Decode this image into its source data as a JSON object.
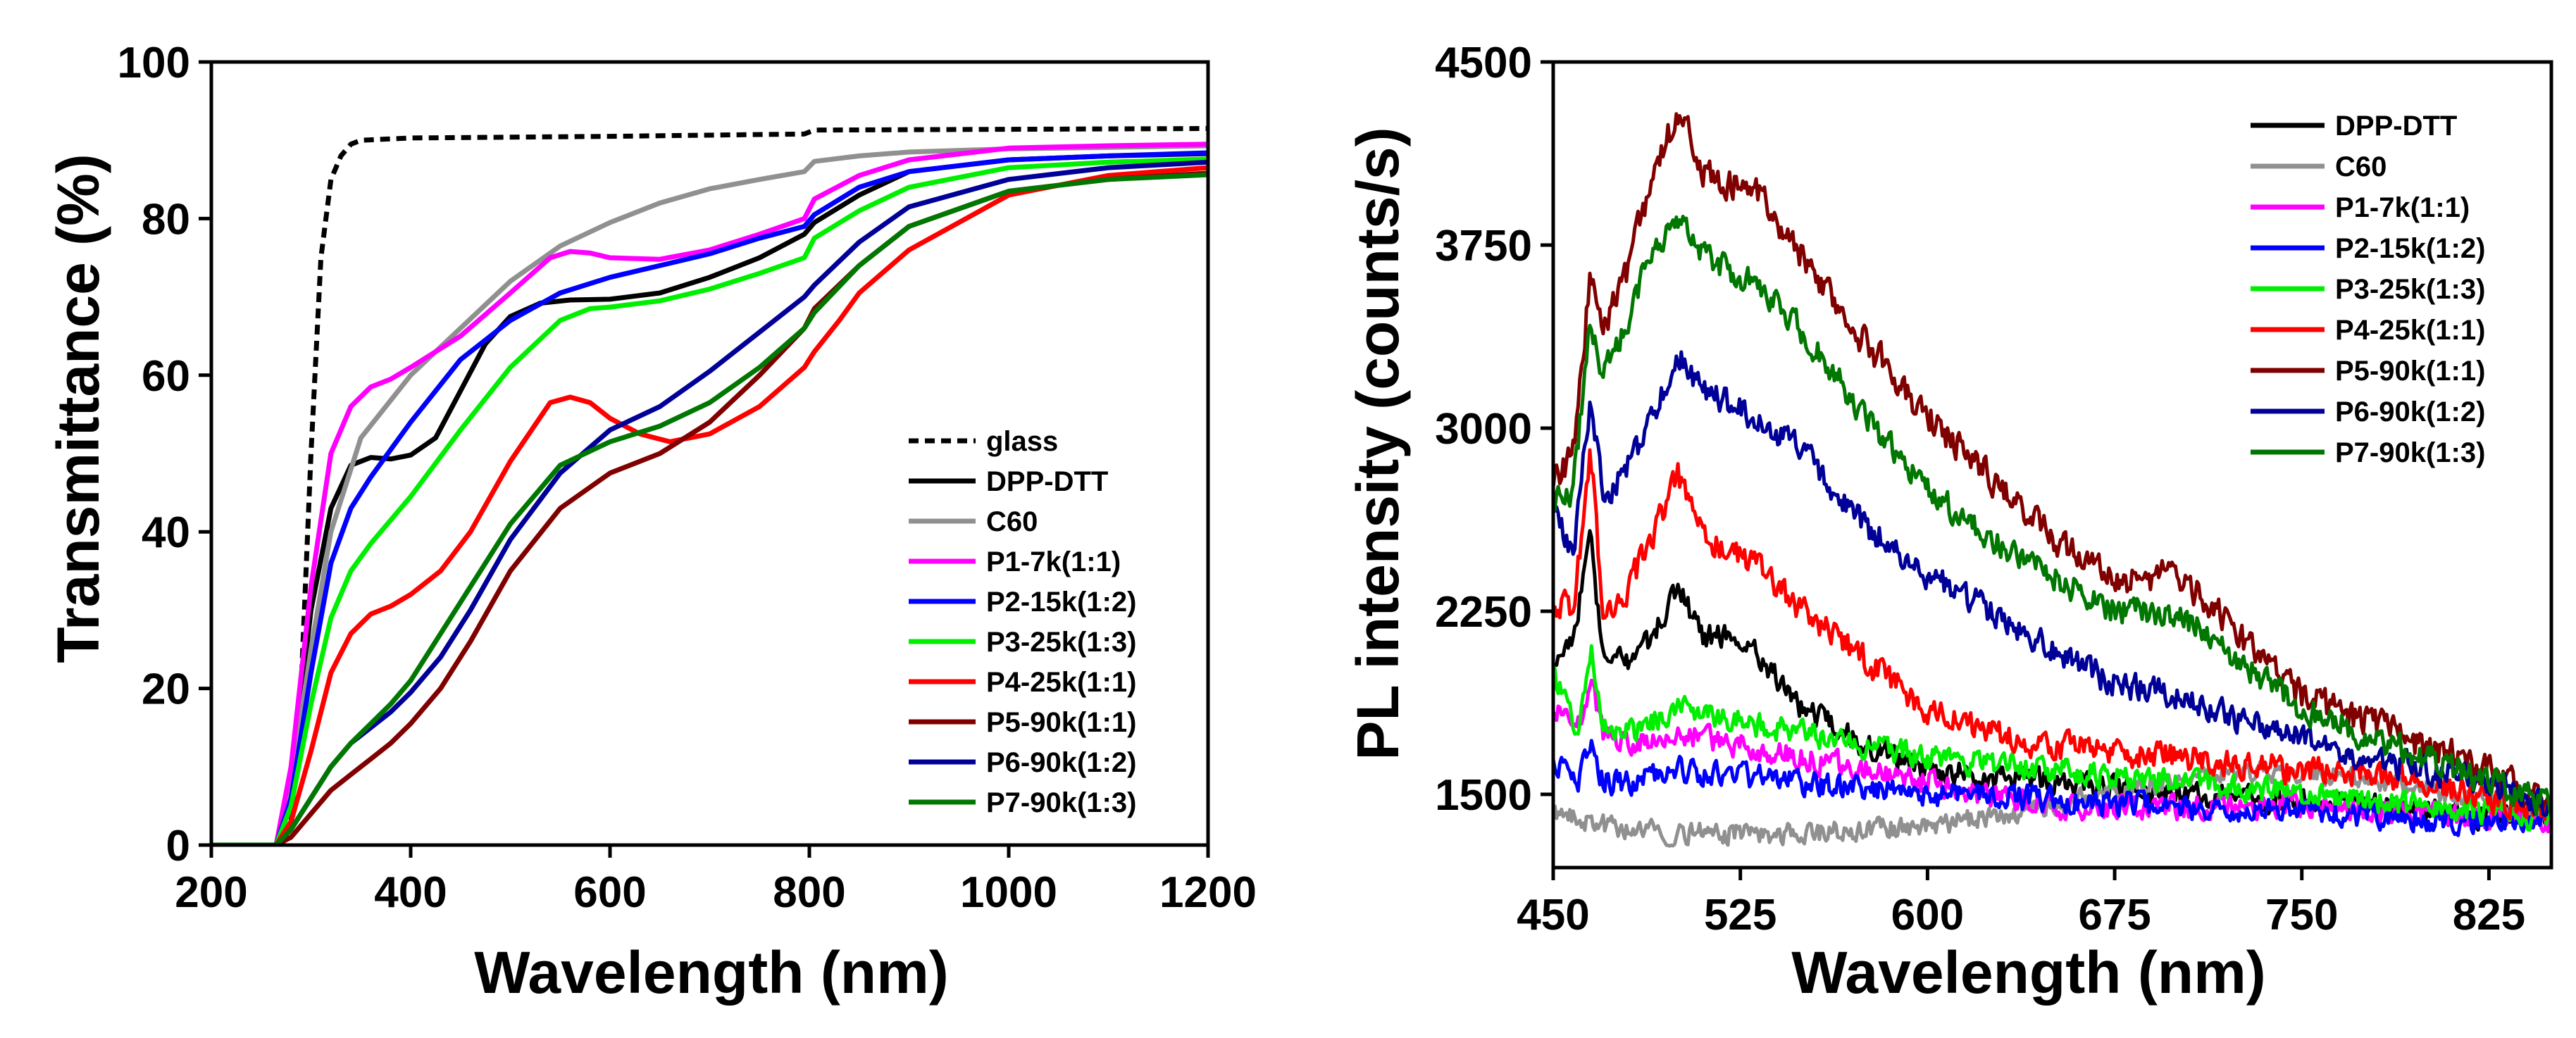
{
  "chart_data": [
    {
      "type": "line",
      "xlabel": "Wavelength  (nm)",
      "ylabel": "Transmittance  (%)",
      "xlim": [
        200,
        1200
      ],
      "ylim": [
        0,
        100
      ],
      "x_ticks": [
        200,
        400,
        600,
        800,
        1000,
        1200
      ],
      "x_tick_labels": [
        "200",
        "400",
        "600",
        "800",
        "1000",
        "1200"
      ],
      "y_ticks": [
        0,
        20,
        40,
        60,
        80,
        100
      ],
      "y_tick_labels": [
        "0",
        "20",
        "40",
        "60",
        "80",
        "100"
      ],
      "legend_position": "bottom-right",
      "series": [
        {
          "name": "glass",
          "color": "#000000",
          "dashed": true,
          "x": [
            200,
            270,
            280,
            290,
            300,
            310,
            320,
            330,
            340,
            350,
            400,
            600,
            795,
            805,
            1000,
            1200
          ],
          "y": [
            0,
            0,
            3,
            20,
            50,
            75,
            85,
            88,
            89.5,
            90,
            90.3,
            90.5,
            90.8,
            91.3,
            91.4,
            91.5
          ]
        },
        {
          "name": "DPP-DTT",
          "color": "#000000",
          "x": [
            200,
            265,
            280,
            300,
            320,
            340,
            360,
            380,
            400,
            425,
            450,
            475,
            500,
            530,
            560,
            600,
            650,
            700,
            750,
            795,
            805,
            850,
            900,
            1000,
            1100,
            1200
          ],
          "y": [
            0,
            0,
            8,
            30,
            43,
            48.5,
            49.5,
            49.3,
            49.8,
            52,
            58,
            64,
            67.5,
            69.2,
            69.6,
            69.7,
            70.5,
            72.5,
            75,
            78,
            79.5,
            83,
            86,
            87.5,
            88,
            88.3
          ]
        },
        {
          "name": "C60",
          "color": "#909090",
          "x": [
            200,
            265,
            280,
            300,
            320,
            350,
            400,
            450,
            500,
            550,
            600,
            650,
            700,
            750,
            795,
            805,
            850,
            900,
            1000,
            1100,
            1200
          ],
          "y": [
            0,
            0,
            8,
            25,
            40,
            52,
            60,
            66,
            72,
            76.5,
            79.5,
            82,
            83.8,
            85,
            86,
            87.3,
            88,
            88.5,
            88.9,
            89.1,
            89.3
          ]
        },
        {
          "name": "P1-7k(1:1)",
          "color": "#ff00ff",
          "x": [
            200,
            265,
            280,
            300,
            320,
            340,
            360,
            380,
            400,
            450,
            500,
            540,
            560,
            580,
            600,
            650,
            700,
            750,
            795,
            805,
            850,
            900,
            1000,
            1100,
            1200
          ],
          "y": [
            0,
            0,
            10,
            33,
            50,
            56,
            58.5,
            59.5,
            61,
            65,
            70.5,
            75,
            75.8,
            75.6,
            75,
            74.8,
            76,
            78,
            80,
            82.5,
            85.5,
            87.5,
            89,
            89.3,
            89.5
          ]
        },
        {
          "name": "P2-15k(1:2)",
          "color": "#0000ff",
          "x": [
            200,
            265,
            280,
            300,
            320,
            340,
            360,
            380,
            400,
            450,
            500,
            550,
            600,
            650,
            700,
            750,
            795,
            805,
            850,
            900,
            1000,
            1100,
            1200
          ],
          "y": [
            0,
            0,
            6,
            22,
            36,
            43,
            47,
            50.5,
            54,
            62,
            67,
            70.5,
            72.5,
            74,
            75.5,
            77.5,
            79,
            80.5,
            84,
            86,
            87.5,
            88,
            88.4
          ]
        },
        {
          "name": "P3-25k(1:3)",
          "color": "#00ee00",
          "x": [
            200,
            265,
            280,
            300,
            320,
            340,
            360,
            380,
            400,
            450,
            500,
            550,
            580,
            600,
            650,
            700,
            750,
            795,
            805,
            850,
            900,
            1000,
            1100,
            1200
          ],
          "y": [
            0,
            0,
            5,
            18,
            29,
            35,
            38.5,
            41.5,
            44.5,
            53,
            61,
            67,
            68.5,
            68.7,
            69.5,
            71,
            73,
            75,
            77.5,
            81,
            84,
            86.5,
            87.2,
            87.6
          ]
        },
        {
          "name": "P4-25k(1:1)",
          "color": "#ff0000",
          "x": [
            200,
            265,
            280,
            300,
            320,
            340,
            360,
            380,
            400,
            430,
            460,
            500,
            540,
            560,
            580,
            600,
            630,
            660,
            700,
            750,
            795,
            805,
            830,
            850,
            900,
            1000,
            1100,
            1200
          ],
          "y": [
            0,
            0,
            3,
            12,
            22,
            27,
            29.5,
            30.5,
            32,
            35,
            40,
            49,
            56.5,
            57.2,
            56.5,
            54.5,
            52.5,
            51.5,
            52.5,
            56,
            61,
            63,
            67,
            70.5,
            76,
            83,
            85.5,
            86.5
          ]
        },
        {
          "name": "P5-90k(1:1)",
          "color": "#800000",
          "x": [
            200,
            265,
            280,
            300,
            320,
            340,
            360,
            380,
            400,
            430,
            460,
            500,
            550,
            600,
            650,
            700,
            750,
            795,
            805,
            850,
            900,
            1000,
            1100,
            1200
          ],
          "y": [
            0,
            0,
            1,
            4,
            7,
            9,
            11,
            13,
            15.5,
            20,
            26,
            35,
            43,
            47.5,
            50,
            54,
            60,
            66,
            68.5,
            74,
            79,
            83.5,
            85,
            85.8
          ]
        },
        {
          "name": "P6-90k(1:2)",
          "color": "#000099",
          "x": [
            200,
            265,
            280,
            300,
            320,
            340,
            360,
            380,
            400,
            430,
            460,
            500,
            550,
            600,
            650,
            700,
            750,
            795,
            805,
            850,
            900,
            1000,
            1100,
            1200
          ],
          "y": [
            0,
            0,
            2,
            6,
            10,
            13,
            15,
            17,
            19.5,
            24,
            30,
            39,
            47.5,
            53,
            56,
            60.5,
            65.5,
            70,
            71.5,
            77,
            81.5,
            85,
            86.5,
            87.2
          ]
        },
        {
          "name": "P7-90k(1:3)",
          "color": "#007700",
          "x": [
            200,
            265,
            280,
            300,
            320,
            340,
            360,
            380,
            400,
            430,
            460,
            500,
            550,
            600,
            650,
            700,
            750,
            795,
            805,
            850,
            900,
            1000,
            1100,
            1200
          ],
          "y": [
            0,
            0,
            2,
            6,
            10,
            13,
            15.5,
            18,
            21,
            27,
            33,
            41,
            48.5,
            51.5,
            53.5,
            56.5,
            61,
            66,
            68,
            74,
            79,
            83.5,
            85,
            85.6
          ]
        }
      ]
    },
    {
      "type": "line",
      "xlabel": "Wavelength  (nm)",
      "ylabel": "PL  intensity  (counts/s)",
      "xlim": [
        450,
        850
      ],
      "ylim": [
        1200,
        4500
      ],
      "x_ticks": [
        450,
        525,
        600,
        675,
        750,
        825
      ],
      "x_tick_labels": [
        "450",
        "525",
        "600",
        "675",
        "750",
        "825"
      ],
      "y_ticks": [
        1500,
        2250,
        3000,
        3750,
        4500
      ],
      "y_tick_labels": [
        "1500",
        "2250",
        "3000",
        "3750",
        "4500"
      ],
      "legend_position": "top-right",
      "series": [
        {
          "name": "DPP-DTT",
          "color": "#000000",
          "noise": 70,
          "x": [
            450,
            458,
            465,
            470,
            480,
            490,
            500,
            510,
            520,
            530,
            550,
            575,
            600,
            650,
            700,
            750,
            800,
            840,
            850
          ],
          "y": [
            2050,
            2150,
            2550,
            2050,
            2050,
            2150,
            2350,
            2150,
            2150,
            2100,
            1850,
            1700,
            1600,
            1550,
            1500,
            1480,
            1430,
            1400,
            1400
          ]
        },
        {
          "name": "C60",
          "color": "#909090",
          "noise": 60,
          "x": [
            450,
            470,
            500,
            550,
            600,
            650,
            680,
            700,
            725,
            750,
            775,
            800,
            825,
            850
          ],
          "y": [
            1420,
            1370,
            1340,
            1340,
            1370,
            1450,
            1520,
            1560,
            1600,
            1590,
            1560,
            1520,
            1460,
            1400
          ]
        },
        {
          "name": "P1-7k(1:1)",
          "color": "#ff00ff",
          "noise": 70,
          "x": [
            450,
            460,
            465,
            470,
            480,
            500,
            550,
            600,
            650,
            700,
            750,
            800,
            850
          ],
          "y": [
            1850,
            1800,
            1950,
            1750,
            1700,
            1750,
            1650,
            1550,
            1450,
            1450,
            1450,
            1420,
            1380
          ]
        },
        {
          "name": "P2-15k(1:2)",
          "color": "#0000ff",
          "noise": 70,
          "x": [
            450,
            460,
            465,
            470,
            480,
            500,
            550,
            600,
            650,
            700,
            750,
            800,
            850
          ],
          "y": [
            1650,
            1550,
            1700,
            1550,
            1550,
            1600,
            1550,
            1500,
            1480,
            1450,
            1430,
            1400,
            1380
          ]
        },
        {
          "name": "P3-25k(1:3)",
          "color": "#00ee00",
          "noise": 70,
          "x": [
            450,
            460,
            465,
            470,
            480,
            500,
            550,
            600,
            650,
            700,
            750,
            800,
            850
          ],
          "y": [
            2000,
            1750,
            2100,
            1800,
            1750,
            1850,
            1750,
            1650,
            1600,
            1550,
            1500,
            1450,
            1400
          ]
        },
        {
          "name": "P4-25k(1:1)",
          "color": "#ff0000",
          "noise": 80,
          "x": [
            450,
            458,
            465,
            470,
            480,
            490,
            500,
            510,
            520,
            530,
            550,
            575,
            600,
            625,
            650,
            700,
            750,
            800,
            840,
            850
          ],
          "y": [
            2300,
            2250,
            2900,
            2250,
            2350,
            2550,
            2800,
            2550,
            2500,
            2450,
            2250,
            2050,
            1850,
            1750,
            1700,
            1650,
            1600,
            1550,
            1450,
            1450
          ]
        },
        {
          "name": "P5-90k(1:1)",
          "color": "#800000",
          "noise": 90,
          "x": [
            450,
            458,
            465,
            470,
            480,
            490,
            500,
            510,
            520,
            530,
            550,
            575,
            600,
            625,
            650,
            675,
            700,
            725,
            750,
            775,
            800,
            825,
            840,
            850
          ],
          "y": [
            2750,
            2900,
            3650,
            3400,
            3650,
            4050,
            4300,
            4050,
            4000,
            4000,
            3700,
            3350,
            3050,
            2800,
            2550,
            2380,
            2400,
            2150,
            1900,
            1800,
            1700,
            1600,
            1500,
            1450
          ]
        },
        {
          "name": "P6-90k(1:2)",
          "color": "#000099",
          "noise": 80,
          "x": [
            450,
            458,
            465,
            470,
            480,
            490,
            500,
            510,
            520,
            530,
            550,
            575,
            600,
            625,
            650,
            675,
            700,
            725,
            750,
            775,
            800,
            825,
            840,
            850
          ],
          "y": [
            2650,
            2500,
            3150,
            2700,
            2850,
            3050,
            3300,
            3150,
            3100,
            3050,
            2900,
            2600,
            2400,
            2250,
            2100,
            1950,
            1900,
            1800,
            1750,
            1650,
            1600,
            1550,
            1500,
            1450
          ]
        },
        {
          "name": "P7-90k(1:3)",
          "color": "#007700",
          "noise": 80,
          "x": [
            450,
            458,
            465,
            470,
            480,
            490,
            500,
            510,
            520,
            530,
            550,
            575,
            600,
            625,
            650,
            675,
            700,
            725,
            750,
            775,
            800,
            825,
            840,
            850
          ],
          "y": [
            2700,
            2750,
            3450,
            3200,
            3450,
            3750,
            3850,
            3700,
            3650,
            3600,
            3400,
            3050,
            2750,
            2550,
            2400,
            2250,
            2250,
            2050,
            1850,
            1750,
            1650,
            1550,
            1500,
            1450
          ]
        }
      ]
    }
  ]
}
